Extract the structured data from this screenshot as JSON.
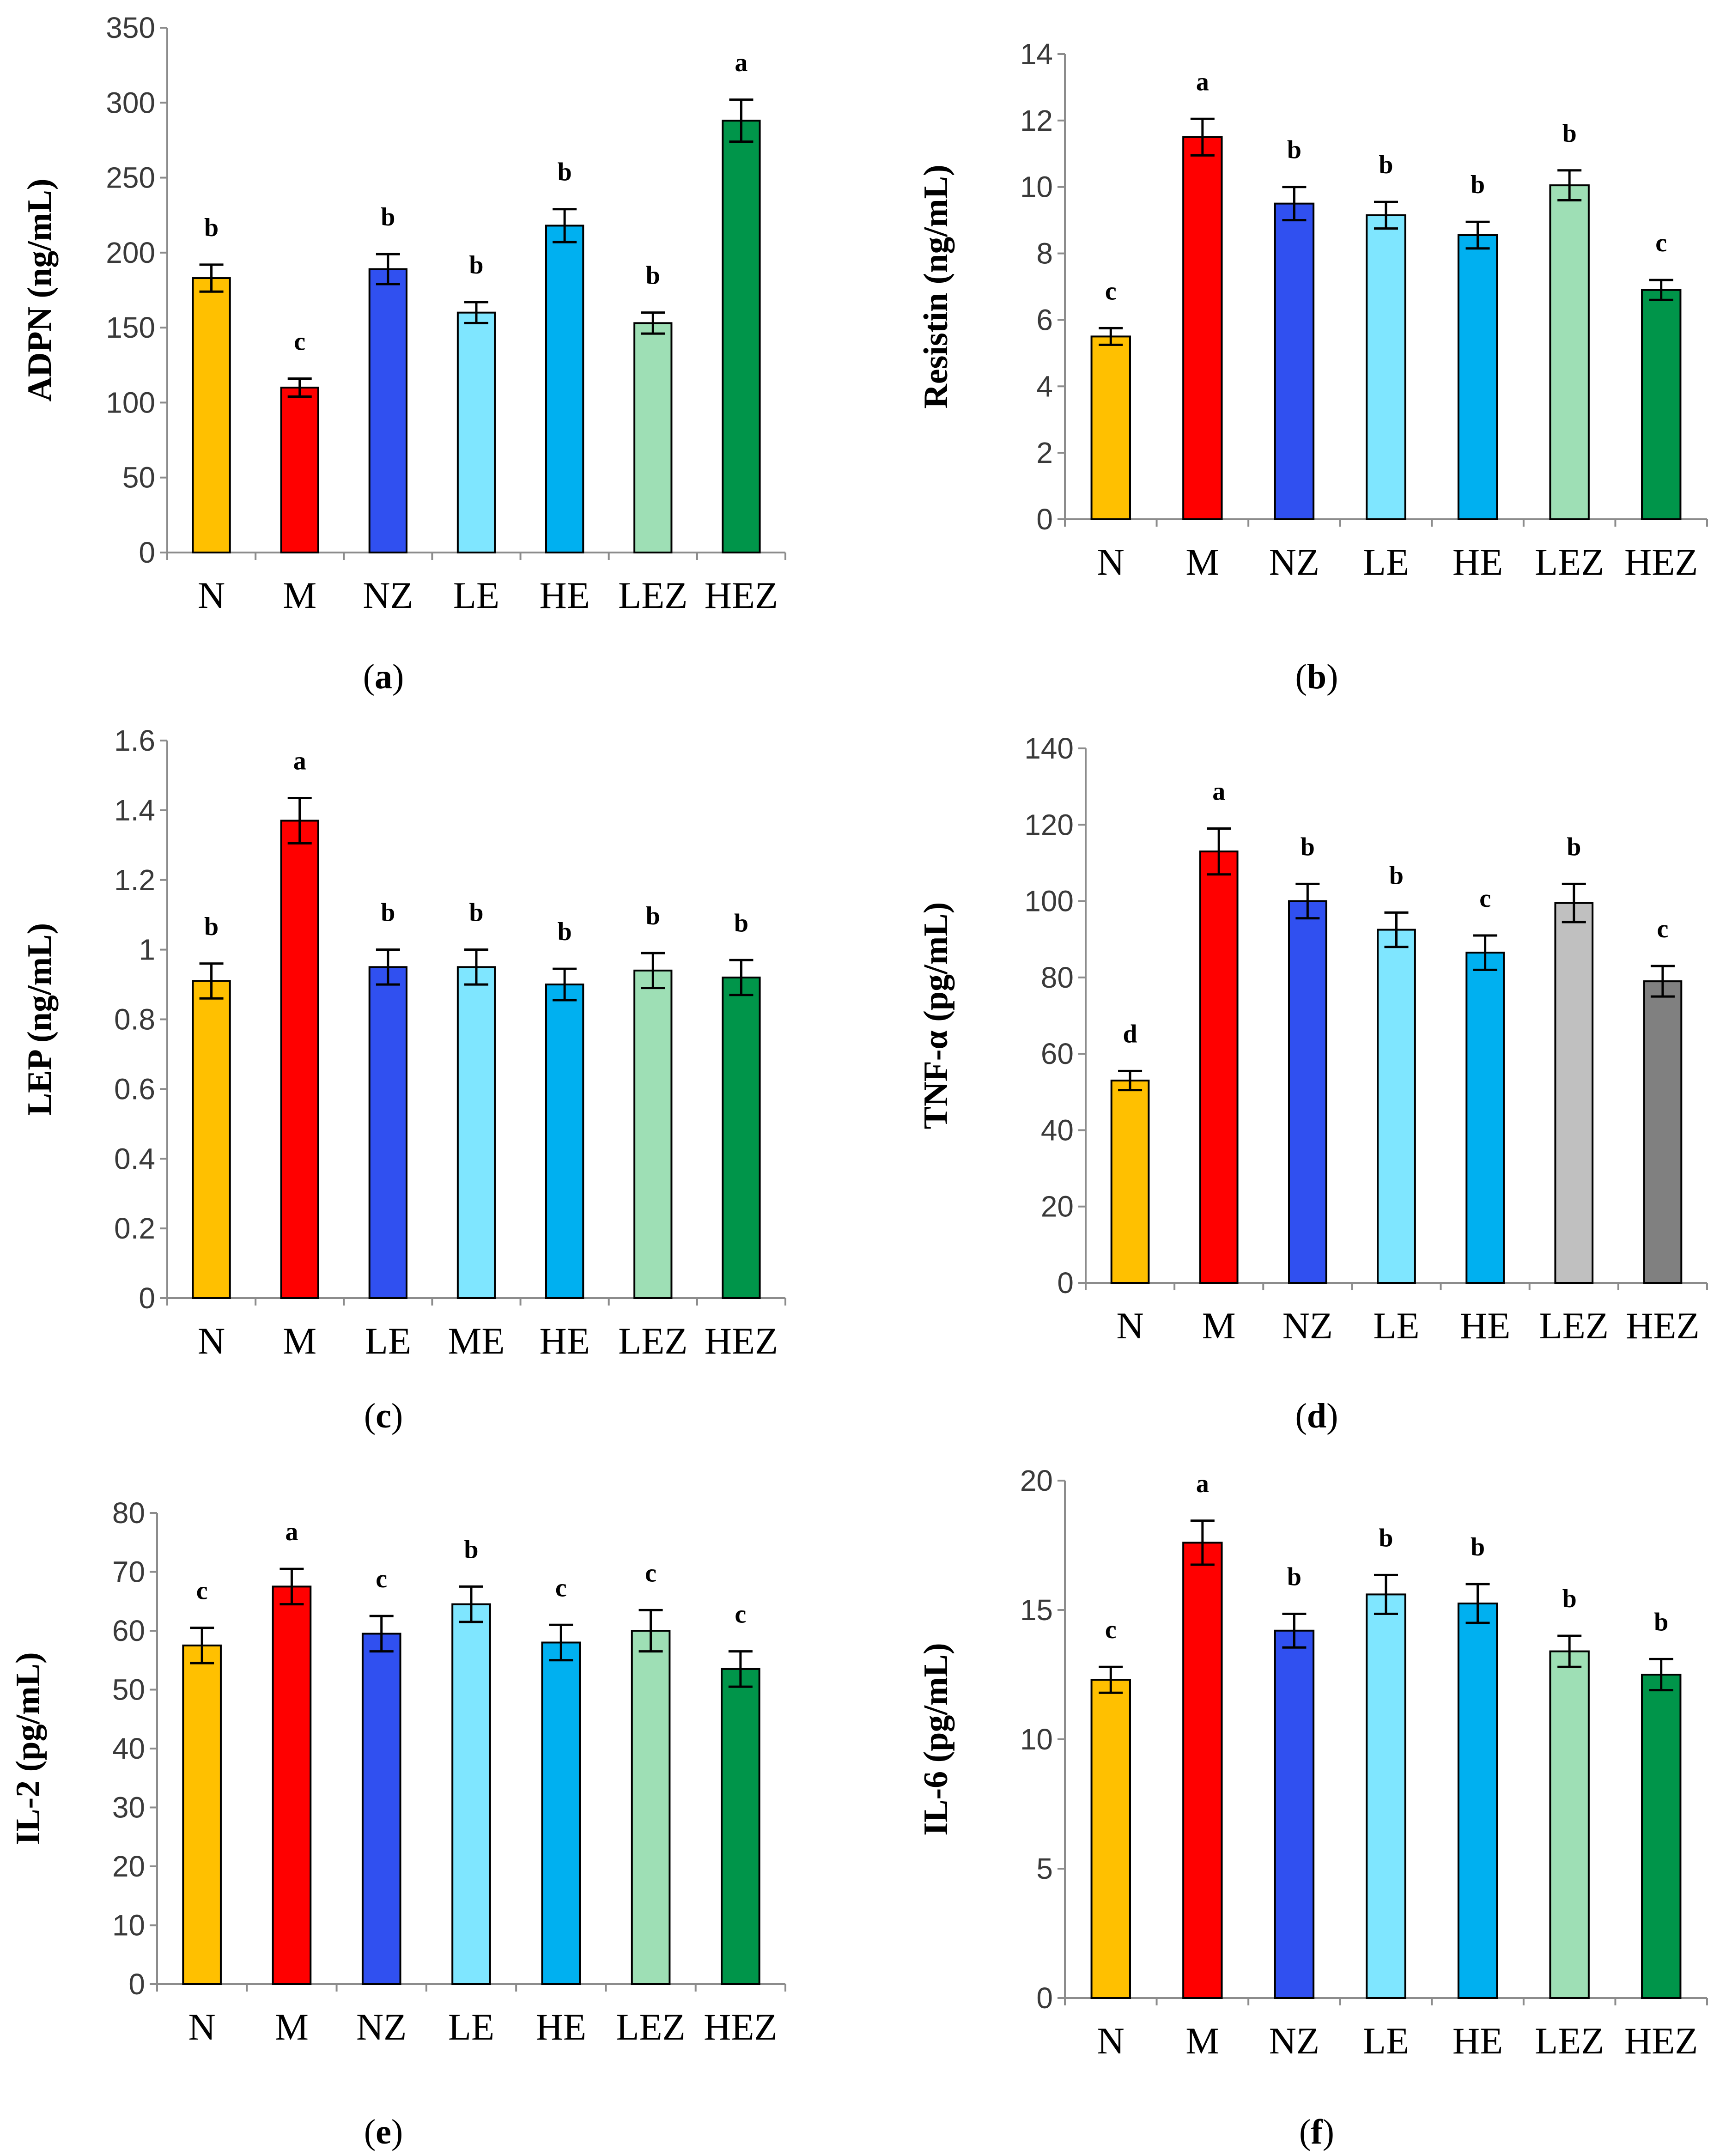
{
  "chart_data": [
    {
      "type": "bar",
      "panel": "a",
      "ylabel": "ADPN (ng/mL)",
      "ylim": [
        0,
        350
      ],
      "yticks": [
        0,
        50,
        100,
        150,
        200,
        250,
        300,
        350
      ],
      "categories": [
        "N",
        "M",
        "NZ",
        "LE",
        "HE",
        "LEZ",
        "HEZ"
      ],
      "values": [
        183,
        110,
        189,
        160,
        218,
        153,
        288
      ],
      "errors": [
        9,
        6,
        10,
        7,
        11,
        7,
        14
      ],
      "significance": [
        "b",
        "c",
        "b",
        "b",
        "b",
        "b",
        "a"
      ],
      "colors": [
        "#FFC000",
        "#FF0000",
        "#3050F0",
        "#7FE6FF",
        "#00B0F0",
        "#9EDFB5",
        "#00954A"
      ],
      "caption": "a"
    },
    {
      "type": "bar",
      "panel": "b",
      "ylabel": "Resistin  (ng/mL)",
      "ylim": [
        0,
        14
      ],
      "yticks": [
        0,
        2,
        4,
        6,
        8,
        10,
        12,
        14
      ],
      "categories": [
        "N",
        "M",
        "NZ",
        "LE",
        "HE",
        "LEZ",
        "HEZ"
      ],
      "values": [
        5.5,
        11.5,
        9.5,
        9.15,
        8.55,
        10.05,
        6.9
      ],
      "errors": [
        0.25,
        0.55,
        0.5,
        0.4,
        0.4,
        0.45,
        0.3
      ],
      "significance": [
        "c",
        "a",
        "b",
        "b",
        "b",
        "b",
        "c"
      ],
      "colors": [
        "#FFC000",
        "#FF0000",
        "#3050F0",
        "#7FE6FF",
        "#00B0F0",
        "#9EDFB5",
        "#00954A"
      ],
      "caption": "b"
    },
    {
      "type": "bar",
      "panel": "c",
      "ylabel": "LEP (ng/mL)",
      "ylim": [
        0,
        1.6
      ],
      "yticks": [
        "0",
        "0.2",
        "0.4",
        "0.6",
        "0.8",
        "1",
        "1.2",
        "1.4",
        "1.6"
      ],
      "categories": [
        "N",
        "M",
        "LE",
        "ME",
        "HE",
        "LEZ",
        "HEZ"
      ],
      "values": [
        0.91,
        1.37,
        0.95,
        0.95,
        0.9,
        0.94,
        0.92
      ],
      "errors": [
        0.05,
        0.065,
        0.05,
        0.05,
        0.045,
        0.05,
        0.05
      ],
      "significance": [
        "b",
        "a",
        "b",
        "b",
        "b",
        "b",
        "b"
      ],
      "colors": [
        "#FFC000",
        "#FF0000",
        "#3050F0",
        "#7FE6FF",
        "#00B0F0",
        "#9EDFB5",
        "#00954A"
      ],
      "caption": "c"
    },
    {
      "type": "bar",
      "panel": "d",
      "ylabel": "TNF-α (pg/mL)",
      "ylim": [
        0,
        140
      ],
      "yticks": [
        0,
        20,
        40,
        60,
        80,
        100,
        120,
        140
      ],
      "categories": [
        "N",
        "M",
        "NZ",
        "LE",
        "HE",
        "LEZ",
        "HEZ"
      ],
      "values": [
        53,
        113,
        100,
        92.5,
        86.5,
        99.5,
        79
      ],
      "errors": [
        2.5,
        6,
        4.5,
        4.5,
        4.5,
        5,
        4
      ],
      "significance": [
        "d",
        "a",
        "b",
        "b",
        "c",
        "b",
        "c"
      ],
      "colors": [
        "#FFC000",
        "#FF0000",
        "#3050F0",
        "#7FE6FF",
        "#00B0F0",
        "#C0C0C0",
        "#808080"
      ],
      "caption": "d"
    },
    {
      "type": "bar",
      "panel": "e",
      "ylabel": "IL-2 (pg/mL)",
      "ylim": [
        0,
        80
      ],
      "yticks": [
        0,
        10,
        20,
        30,
        40,
        50,
        60,
        70,
        80
      ],
      "categories": [
        "N",
        "M",
        "NZ",
        "LE",
        "HE",
        "LEZ",
        "HEZ"
      ],
      "values": [
        57.5,
        67.5,
        59.5,
        64.5,
        58,
        60,
        53.5
      ],
      "errors": [
        3,
        3,
        3,
        3,
        3,
        3.5,
        3
      ],
      "significance": [
        "c",
        "a",
        "c",
        "b",
        "c",
        "c",
        "c"
      ],
      "colors": [
        "#FFC000",
        "#FF0000",
        "#3050F0",
        "#7FE6FF",
        "#00B0F0",
        "#9EDFB5",
        "#00954A"
      ],
      "caption": "e"
    },
    {
      "type": "bar",
      "panel": "f",
      "ylabel": "IL-6 (pg/mL)",
      "ylim": [
        0,
        20
      ],
      "yticks": [
        0,
        5,
        10,
        15,
        20
      ],
      "categories": [
        "N",
        "M",
        "NZ",
        "LE",
        "HE",
        "LEZ",
        "HEZ"
      ],
      "values": [
        12.3,
        17.6,
        14.2,
        15.6,
        15.25,
        13.4,
        12.5
      ],
      "errors": [
        0.5,
        0.85,
        0.65,
        0.75,
        0.75,
        0.6,
        0.6
      ],
      "significance": [
        "c",
        "a",
        "b",
        "b",
        "b",
        "b",
        "b"
      ],
      "colors": [
        "#FFC000",
        "#FF0000",
        "#3050F0",
        "#7FE6FF",
        "#00B0F0",
        "#9EDFB5",
        "#00954A"
      ],
      "caption": "f"
    }
  ]
}
